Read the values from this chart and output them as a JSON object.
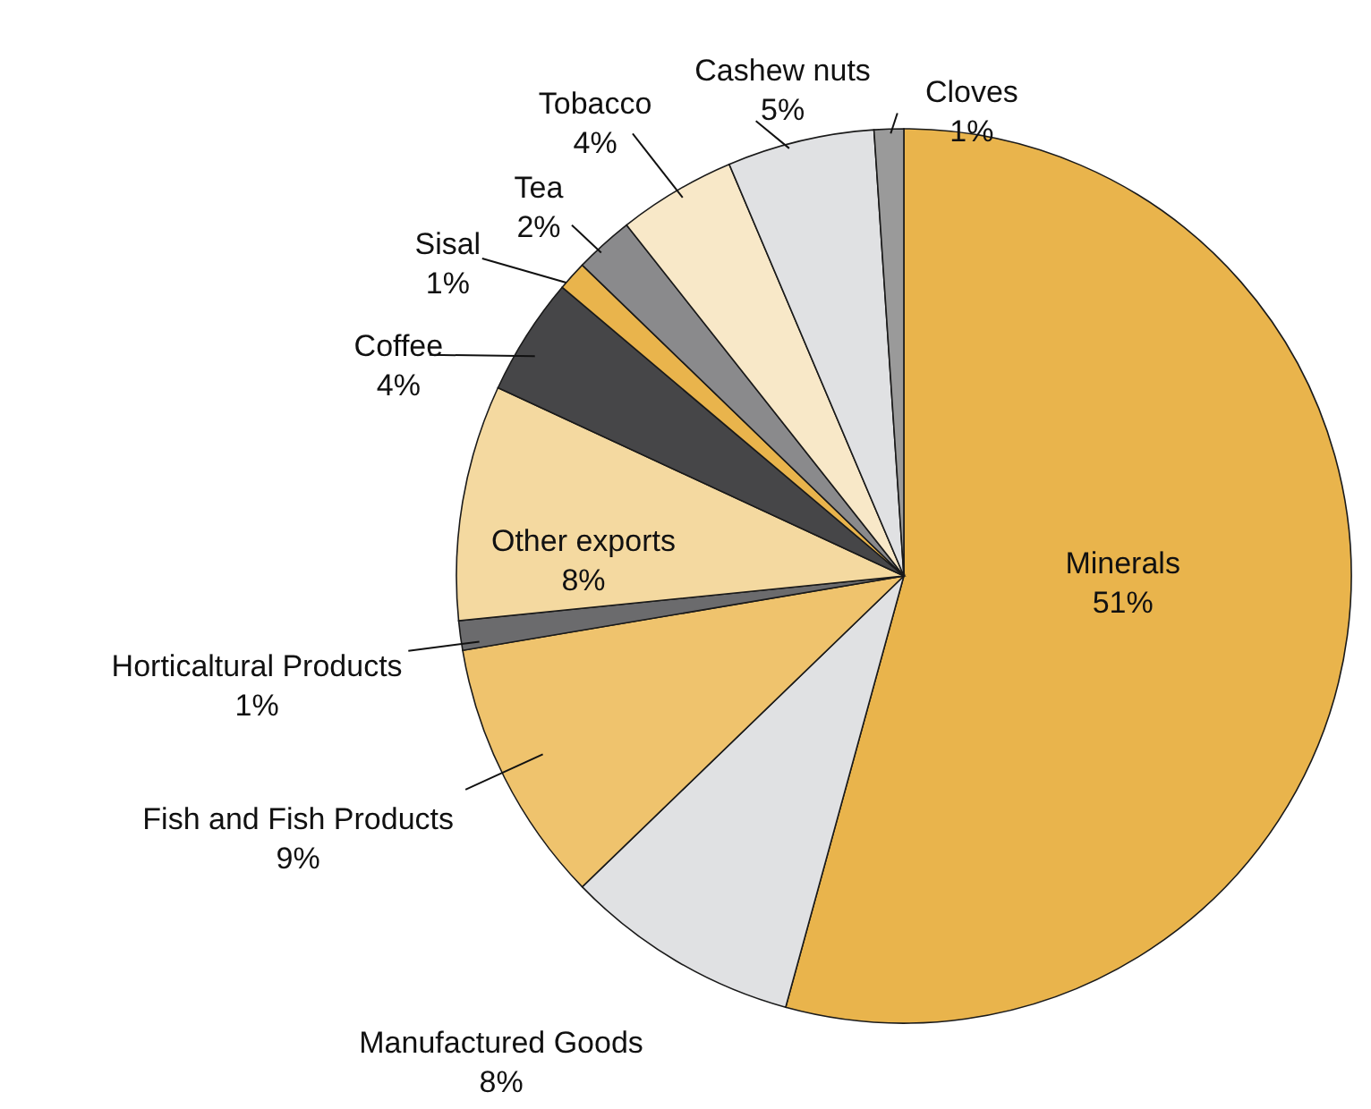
{
  "chart_data": {
    "type": "pie",
    "categories": [
      "Minerals",
      "Manufactured Goods",
      "Fish and Fish Products",
      "Horticaltural Products",
      "Other exports",
      "Coffee",
      "Sisal",
      "Tea",
      "Tobacco",
      "Cashew nuts",
      "Cloves"
    ],
    "values": [
      51,
      8,
      9,
      1,
      8,
      4,
      1,
      2,
      4,
      5,
      1
    ],
    "value_labels": [
      "51%",
      "8%",
      "9%",
      "1%",
      "8%",
      "4%",
      "1%",
      "2%",
      "4%",
      "5%",
      "1%"
    ],
    "colors": [
      "#e9b44c",
      "#e0e1e3",
      "#efc36d",
      "#6b6b6d",
      "#f4d9a0",
      "#464648",
      "#e9b44c",
      "#8a8a8c",
      "#f8e8c8",
      "#e0e1e3",
      "#9a9a9a"
    ]
  }
}
